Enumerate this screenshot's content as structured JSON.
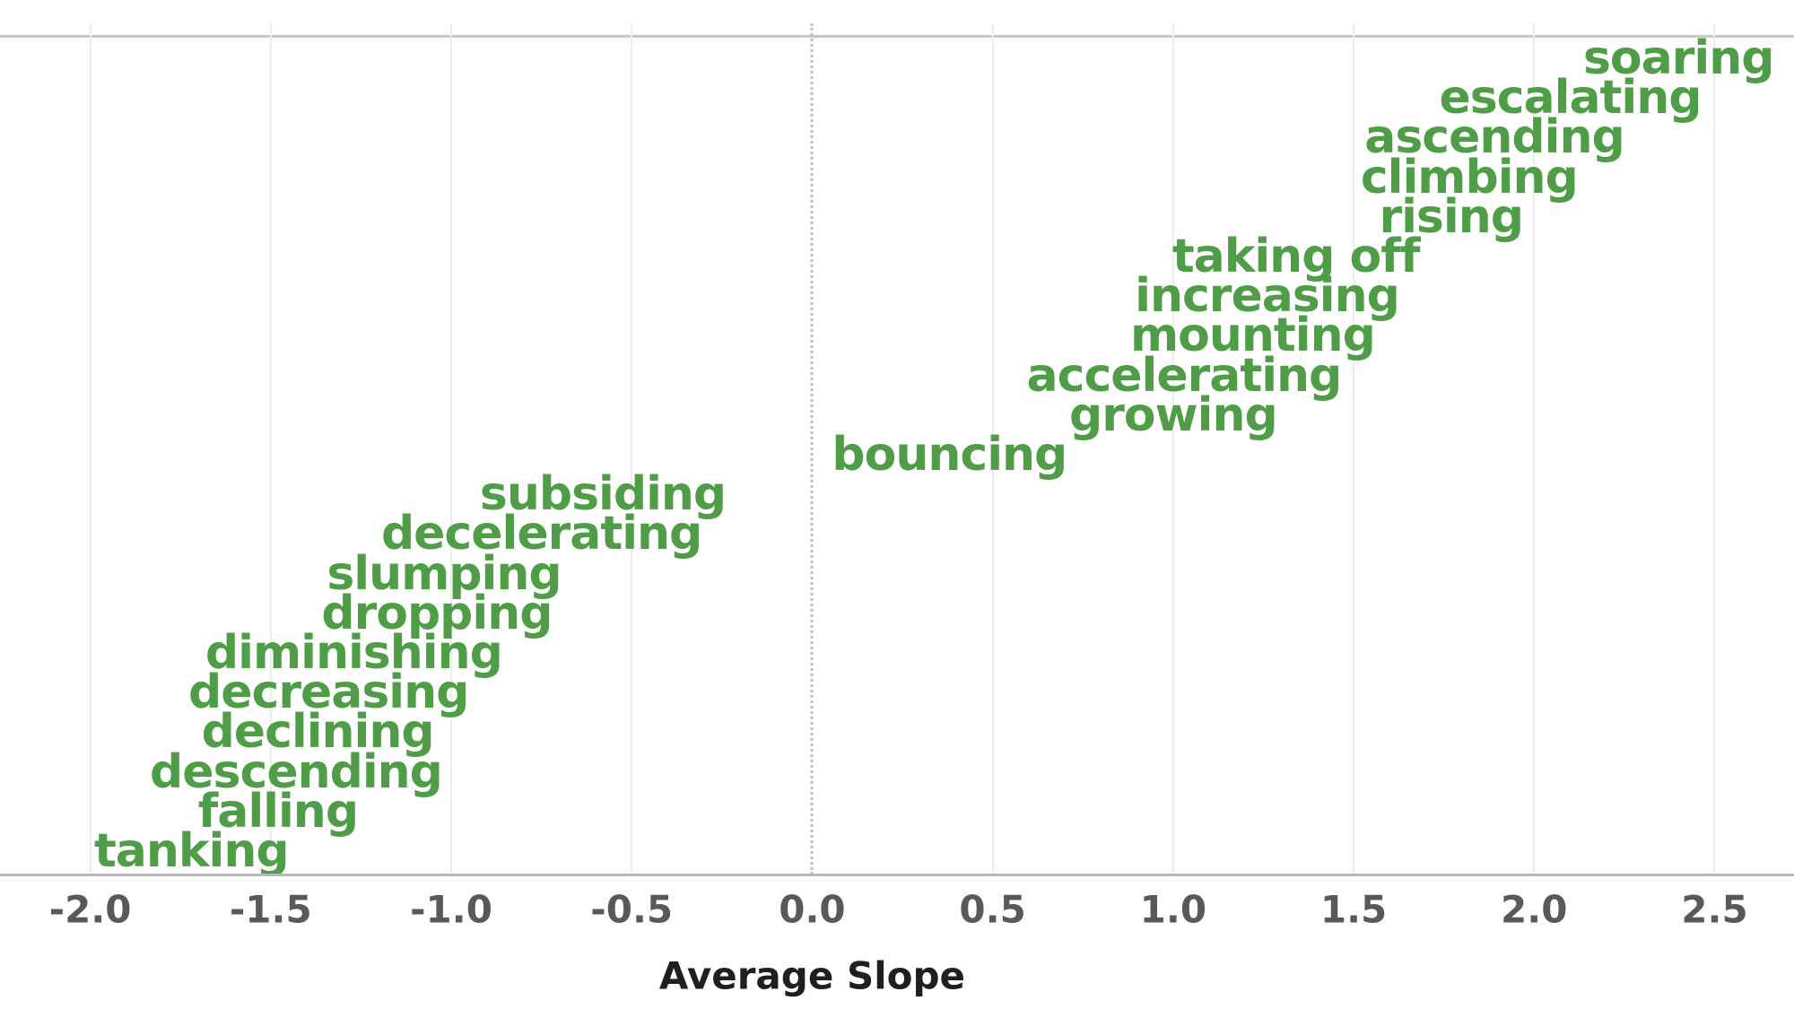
{
  "chart_data": {
    "type": "scatter",
    "subtype": "text-labels-as-points",
    "title": "",
    "xlabel": "Average Slope",
    "ylabel": "",
    "xlim": [
      -2.25,
      2.72
    ],
    "grid": "vertical-on",
    "zero_line": "dotted",
    "x_ticks": [
      {
        "label": "-2.0",
        "value": -2.0
      },
      {
        "label": "-1.5",
        "value": -1.5
      },
      {
        "label": "-1.0",
        "value": -1.0
      },
      {
        "label": "-0.5",
        "value": -0.5
      },
      {
        "label": "0.0",
        "value": 0.0
      },
      {
        "label": "0.5",
        "value": 0.5
      },
      {
        "label": "1.0",
        "value": 1.0
      },
      {
        "label": "1.5",
        "value": 1.5
      },
      {
        "label": "2.0",
        "value": 2.0
      },
      {
        "label": "2.5",
        "value": 2.5
      }
    ],
    "points_note": "y axis is rank order by average slope (no visible y ticks); points listed top-to-bottom",
    "points": [
      {
        "word": "soaring",
        "slope": 2.4
      },
      {
        "word": "escalating",
        "slope": 2.1
      },
      {
        "word": "ascending",
        "slope": 1.89
      },
      {
        "word": "climbing",
        "slope": 1.82
      },
      {
        "word": "rising",
        "slope": 1.77
      },
      {
        "word": "taking off",
        "slope": 1.34
      },
      {
        "word": "increasing",
        "slope": 1.26
      },
      {
        "word": "mounting",
        "slope": 1.22
      },
      {
        "word": "accelerating",
        "slope": 1.03
      },
      {
        "word": "growing",
        "slope": 1.0
      },
      {
        "word": "bouncing",
        "slope": 0.38
      },
      {
        "word": "subsiding",
        "slope": -0.58
      },
      {
        "word": "decelerating",
        "slope": -0.75
      },
      {
        "word": "slumping",
        "slope": -1.02
      },
      {
        "word": "dropping",
        "slope": -1.04
      },
      {
        "word": "diminishing",
        "slope": -1.27
      },
      {
        "word": "decreasing",
        "slope": -1.34
      },
      {
        "word": "declining",
        "slope": -1.37
      },
      {
        "word": "descending",
        "slope": -1.43
      },
      {
        "word": "falling",
        "slope": -1.48
      },
      {
        "word": "tanking",
        "slope": -1.72
      }
    ],
    "colors": {
      "word_green": "#4f9d47",
      "tick_gray": "#59595b",
      "title_dark": "#1f1f1f",
      "gridline": "#ededed",
      "zero_line": "#bfbfbf",
      "axis_line": "#b9b9b9",
      "top_border": "#c7c7c7",
      "background": "#ffffff"
    }
  }
}
